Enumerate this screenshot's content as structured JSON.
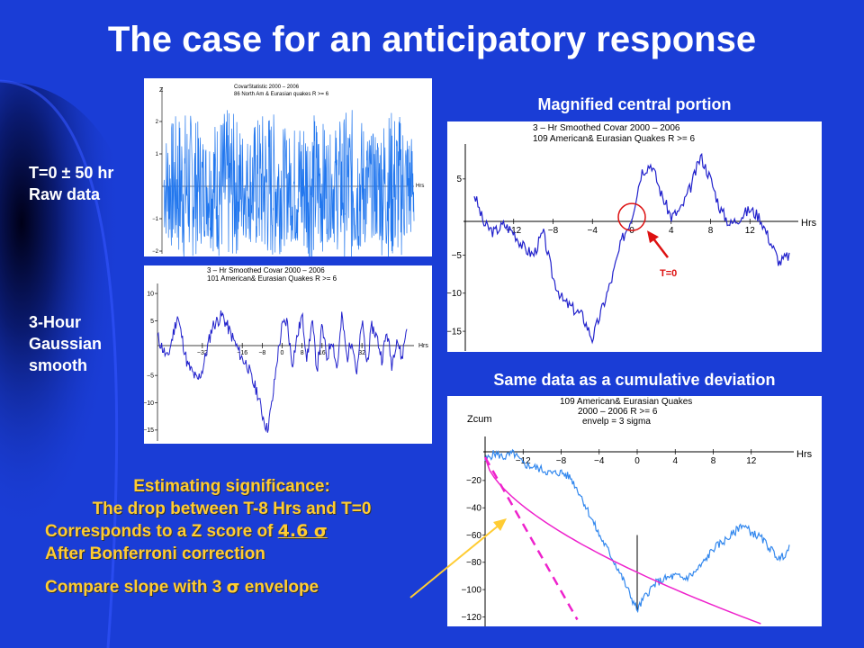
{
  "slide": {
    "title": "The case for an anticipatory response",
    "left_label_1": [
      "T=0 ± 50 hr",
      "Raw data"
    ],
    "left_label_2": [
      "3-Hour",
      "Gaussian",
      "smooth"
    ],
    "right_header_1": "Magnified central portion",
    "right_header_2": "Same data as a cumulative deviation",
    "significance": {
      "heading": "Estimating significance:",
      "line1": "The drop between T-8 Hrs and T=0",
      "line2_prefix": "Corresponds to a Z score of ",
      "line2_value": "4.6 σ",
      "line3": "After Bonferroni correction",
      "line4_prefix": "Compare slope with 3 ",
      "line4_sigma": "σ",
      "line4_suffix": " envelope"
    },
    "colors": {
      "background": "#1a3dd6",
      "annotation": "#ffcc33",
      "arrow_yellow": "#ffcc33"
    }
  },
  "chart_data": [
    {
      "type": "line",
      "title": "CovarStatistic 2000 – 2006",
      "subtitle": "86 North Am & Eurasian quakes R >= 6",
      "ylabel": "Z",
      "xlabel": "Hrs",
      "yticks": [
        "2",
        "1",
        "−1",
        "−2"
      ],
      "ylim": [
        -2.5,
        2.5
      ],
      "xlim": [
        -50,
        50
      ],
      "series": [
        {
          "values": "noisy raw signal, amplitude about ±2"
        }
      ],
      "color": "#2277ee"
    },
    {
      "type": "line",
      "title": "3 – Hr Smoothed Covar 2000 – 2006",
      "subtitle": "101  American& Eurasian Quakes R >= 6",
      "xlabel": "Hrs",
      "xticks": [
        "−32",
        "−16",
        "−8",
        "0",
        "8",
        "16",
        "32"
      ],
      "yticks": [
        "10",
        "5",
        "−5",
        "−10",
        "−15"
      ],
      "ylim": [
        -17,
        11
      ],
      "xlim": [
        -50,
        50
      ],
      "x": [
        -50,
        -46,
        -42,
        -38,
        -34,
        -32,
        -28,
        -24,
        -20,
        -16,
        -14,
        -12,
        -10,
        -8,
        -6,
        -4,
        -2,
        0,
        2,
        4,
        6,
        8,
        10,
        12,
        14,
        16,
        18,
        20,
        22,
        24,
        26,
        28,
        30,
        32,
        34,
        36,
        38,
        40,
        42,
        44,
        46,
        48,
        50
      ],
      "y": [
        2,
        -2,
        6,
        -3,
        -6,
        -4,
        4,
        6,
        2,
        -2,
        -3,
        -6,
        -8,
        -12,
        -15,
        -10,
        -2,
        4,
        5,
        -3,
        2,
        6,
        -2,
        5,
        -4,
        4,
        -2,
        2,
        -4,
        6,
        -2,
        2,
        -5,
        5,
        -3,
        4,
        2,
        -2,
        3,
        -3,
        2,
        -2,
        4
      ],
      "color": "#2222cc"
    },
    {
      "type": "line",
      "title": "3 – Hr Smoothed Covar 2000 – 2006",
      "subtitle": "109  American& Eurasian Quakes R >= 6",
      "xlabel": "Hrs",
      "xticks": [
        "−12",
        "−8",
        "−4",
        "0",
        "4",
        "8",
        "12"
      ],
      "yticks": [
        "5",
        "−5",
        "−10",
        "−15"
      ],
      "ylim": [
        -17,
        9
      ],
      "xlim": [
        -16,
        16
      ],
      "x": [
        -16,
        -15,
        -14,
        -13,
        -12,
        -11,
        -10,
        -9,
        -8,
        -7,
        -6,
        -5,
        -4,
        -3,
        -2,
        -1,
        0,
        1,
        2,
        3,
        4,
        5,
        6,
        7,
        8,
        9,
        10,
        11,
        12,
        13,
        14,
        15,
        16
      ],
      "y": [
        3,
        -1,
        -2,
        -1,
        -2,
        -4,
        -5,
        -2,
        -8,
        -11,
        -12,
        -13,
        -16,
        -12,
        -8,
        -3,
        0,
        6,
        7,
        3,
        0,
        1,
        4,
        8,
        5,
        1,
        -1,
        0,
        1,
        0,
        -3,
        -6,
        -5
      ],
      "annotation": "T=0",
      "color": "#2222cc"
    },
    {
      "type": "line",
      "title": "109 American& Eurasian Quakes",
      "subtitle": "2000 – 2006  R >= 6",
      "note": "envelp = 3 sigma",
      "ylabel": "Zcum",
      "xlabel": "Hrs",
      "xticks": [
        "−12",
        "−8",
        "−4",
        "0",
        "4",
        "8",
        "12"
      ],
      "yticks": [
        "−20",
        "−40",
        "−60",
        "−80",
        "−100",
        "−120"
      ],
      "ylim": [
        -125,
        5
      ],
      "xlim": [
        -16,
        16
      ],
      "series": [
        {
          "x": [
            -16,
            -15,
            -14,
            -13,
            -12,
            -11,
            -10,
            -9,
            -8,
            -7,
            -6,
            -5,
            -4,
            -3,
            -2,
            -1,
            0,
            1,
            2,
            3,
            4,
            5,
            6,
            7,
            8,
            9,
            10,
            11,
            12,
            13,
            14,
            15,
            16
          ],
          "y": [
            -5,
            0,
            -3,
            0,
            -8,
            -10,
            -12,
            -15,
            -14,
            -18,
            -30,
            -45,
            -60,
            -72,
            -85,
            -100,
            -115,
            -103,
            -95,
            -92,
            -90,
            -92,
            -88,
            -80,
            -70,
            -65,
            -60,
            -52,
            -58,
            -62,
            -70,
            -78,
            -70
          ]
        }
      ],
      "color": "#3388ee",
      "envelope_color": "#ee22cc"
    }
  ]
}
